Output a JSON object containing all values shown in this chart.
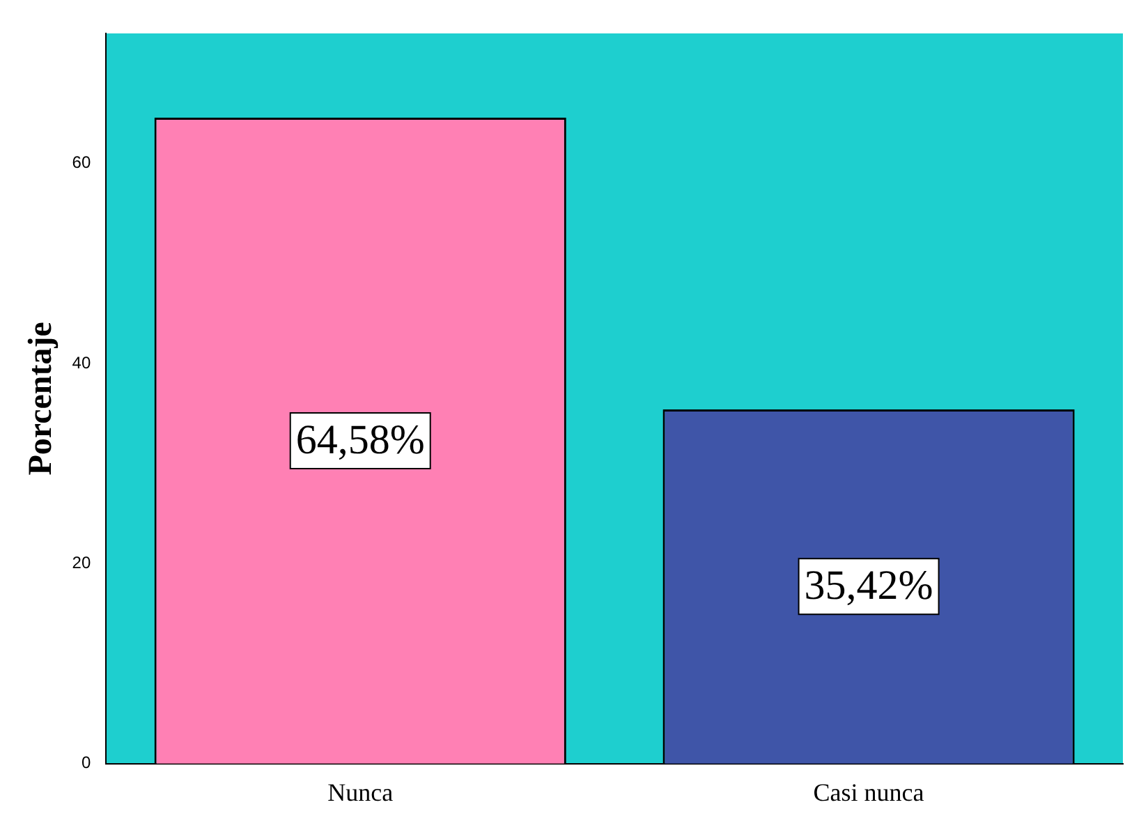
{
  "chart_data": {
    "type": "bar",
    "ylabel": "Porcentaje",
    "categories": [
      "Nunca",
      "Casi nunca"
    ],
    "values": [
      64.58,
      35.42
    ],
    "colors": [
      "#ff80b4",
      "#3f55a8"
    ],
    "value_labels": [
      "64,58%",
      "35,42%"
    ],
    "ylim": [
      0,
      73
    ],
    "yticks": [
      0,
      20,
      40,
      60
    ],
    "grid": false,
    "legend": false
  }
}
